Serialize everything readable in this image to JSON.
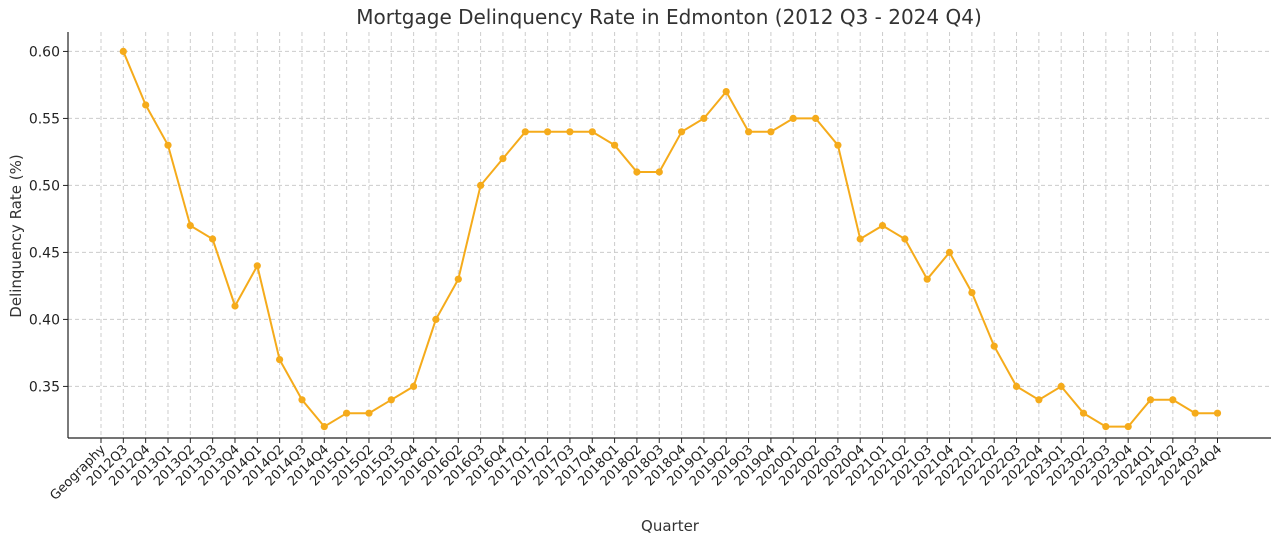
{
  "chart_data": {
    "type": "line",
    "title": "Mortgage Delinquency Rate in Edmonton (2012 Q3 - 2024 Q4)",
    "xlabel": "Quarter",
    "ylabel": "Delinquency Rate (%)",
    "categories": [
      "Geography",
      "2012Q3",
      "2012Q4",
      "2013Q1",
      "2013Q2",
      "2013Q3",
      "2013Q4",
      "2014Q1",
      "2014Q2",
      "2014Q3",
      "2014Q4",
      "2015Q1",
      "2015Q2",
      "2015Q3",
      "2015Q4",
      "2016Q1",
      "2016Q2",
      "2016Q3",
      "2016Q4",
      "2017Q1",
      "2017Q2",
      "2017Q3",
      "2017Q4",
      "2018Q1",
      "2018Q2",
      "2018Q3",
      "2018Q4",
      "2019Q1",
      "2019Q2",
      "2019Q3",
      "2019Q4",
      "2020Q1",
      "2020Q2",
      "2020Q3",
      "2020Q4",
      "2021Q1",
      "2021Q2",
      "2021Q3",
      "2021Q4",
      "2022Q1",
      "2022Q2",
      "2022Q3",
      "2022Q4",
      "2023Q1",
      "2023Q2",
      "2023Q3",
      "2023Q4",
      "2024Q1",
      "2024Q2",
      "2024Q3",
      "2024Q4"
    ],
    "series": [
      {
        "color": "#f5ab1b",
        "values": [
          null,
          0.6,
          0.56,
          0.53,
          0.47,
          0.46,
          0.41,
          0.44,
          0.37,
          0.34,
          0.32,
          0.33,
          0.33,
          0.34,
          0.35,
          0.4,
          0.43,
          0.5,
          0.52,
          0.54,
          0.54,
          0.54,
          0.54,
          0.53,
          0.51,
          0.51,
          0.54,
          0.55,
          0.57,
          0.54,
          0.54,
          0.55,
          0.55,
          0.53,
          0.46,
          0.47,
          0.46,
          0.43,
          0.45,
          0.42,
          0.38,
          0.35,
          0.34,
          0.35,
          0.33,
          0.32,
          0.32,
          0.34,
          0.34,
          0.33,
          0.33
        ]
      }
    ],
    "yticks": [
      "0.35",
      "0.40",
      "0.45",
      "0.50",
      "0.55",
      "0.60"
    ],
    "ylim": [
      0.3115,
      0.6145
    ],
    "grid": true,
    "legend": "none"
  }
}
